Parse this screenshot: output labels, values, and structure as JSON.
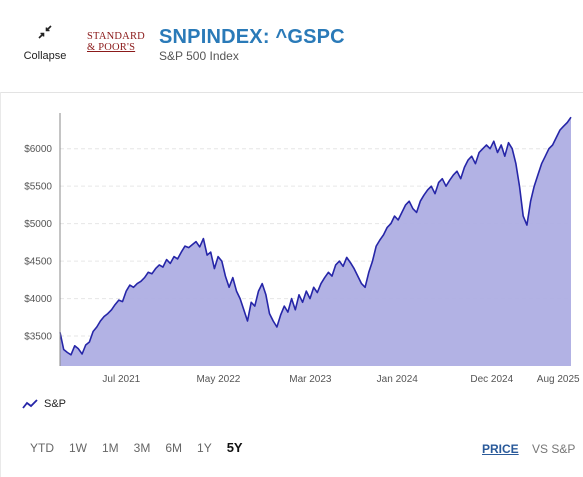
{
  "header": {
    "collapse_label": "Collapse",
    "logo_line1": "STANDARD",
    "logo_line2": "& POOR'S",
    "title": "SNPINDEX: ^GSPC",
    "subtitle": "S&P 500 Index"
  },
  "chart_data": {
    "type": "area",
    "title": "",
    "xlabel": "",
    "ylabel": "",
    "ylim": [
      3100,
      6450
    ],
    "yticks": [
      3500,
      4000,
      4500,
      5000,
      5500,
      6000
    ],
    "ytick_labels": [
      "$3500",
      "$4000",
      "$4500",
      "$5000",
      "$5500",
      "$6000"
    ],
    "xtick_labels": [
      "Jul 2021",
      "May 2022",
      "Mar 2023",
      "Jan 2024",
      "Dec 2024",
      "Aug 2025"
    ],
    "xtick_positions": [
      0.12,
      0.31,
      0.49,
      0.66,
      0.845,
      0.975
    ],
    "line_color": "#2626a8",
    "fill_color": "#aeaee3",
    "grid": "horizontal-dashed",
    "series": [
      {
        "name": "S&P",
        "values": [
          3550,
          3320,
          3280,
          3250,
          3370,
          3330,
          3260,
          3380,
          3420,
          3560,
          3620,
          3700,
          3760,
          3800,
          3850,
          3920,
          3980,
          3960,
          4100,
          4180,
          4150,
          4200,
          4230,
          4280,
          4350,
          4330,
          4400,
          4450,
          4420,
          4520,
          4470,
          4560,
          4530,
          4620,
          4700,
          4680,
          4720,
          4760,
          4690,
          4800,
          4580,
          4620,
          4400,
          4560,
          4500,
          4300,
          4150,
          4280,
          4100,
          4000,
          3850,
          3700,
          3950,
          3900,
          4100,
          4200,
          4050,
          3800,
          3700,
          3620,
          3780,
          3900,
          3820,
          4000,
          3850,
          4050,
          3950,
          4100,
          4000,
          4150,
          4080,
          4200,
          4280,
          4350,
          4300,
          4450,
          4500,
          4430,
          4550,
          4480,
          4400,
          4300,
          4200,
          4150,
          4350,
          4500,
          4700,
          4780,
          4850,
          4950,
          5000,
          5100,
          5050,
          5150,
          5250,
          5300,
          5200,
          5150,
          5300,
          5380,
          5450,
          5500,
          5400,
          5550,
          5600,
          5500,
          5580,
          5650,
          5700,
          5600,
          5750,
          5850,
          5900,
          5800,
          5950,
          6000,
          6050,
          6000,
          6100,
          5950,
          6050,
          5900,
          6080,
          6000,
          5800,
          5500,
          5100,
          4980,
          5300,
          5500,
          5650,
          5800,
          5900,
          6000,
          6050,
          6150,
          6250,
          6300,
          6350,
          6420
        ]
      }
    ]
  },
  "legend": {
    "label": "S&P"
  },
  "ranges": [
    "YTD",
    "1W",
    "1M",
    "3M",
    "6M",
    "1Y",
    "5Y"
  ],
  "active_range": "5Y",
  "modes": {
    "price": "PRICE",
    "vs": "VS S&P"
  },
  "colors": {
    "title": "#2a7ab8",
    "line": "#2626a8",
    "fill": "#aeaee3",
    "logo": "#8b1a1a"
  }
}
